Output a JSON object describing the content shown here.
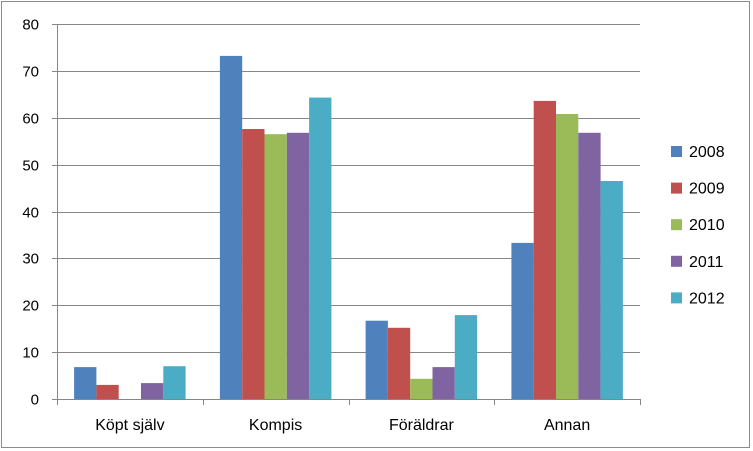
{
  "chart_data": {
    "type": "bar",
    "categories": [
      "Köpt själv",
      "Kompis",
      "Föräldrar",
      "Annan"
    ],
    "series": [
      {
        "name": "2008",
        "color": "#4f81bd",
        "values": [
          6.8,
          73.2,
          16.7,
          33.3
        ]
      },
      {
        "name": "2009",
        "color": "#c0504d",
        "values": [
          3.0,
          57.6,
          15.2,
          63.6
        ]
      },
      {
        "name": "2010",
        "color": "#9bbb59",
        "values": [
          0,
          56.5,
          4.3,
          60.8
        ]
      },
      {
        "name": "2011",
        "color": "#8064a2",
        "values": [
          3.4,
          56.8,
          6.8,
          56.8
        ]
      },
      {
        "name": "2012",
        "color": "#4bacc6",
        "values": [
          7.0,
          64.3,
          17.9,
          46.5
        ]
      }
    ],
    "ylim": [
      0,
      80
    ],
    "yticks": [
      "0",
      "10",
      "20",
      "30",
      "40",
      "50",
      "60",
      "70",
      "80"
    ],
    "grid": true,
    "legend_position": "right"
  }
}
